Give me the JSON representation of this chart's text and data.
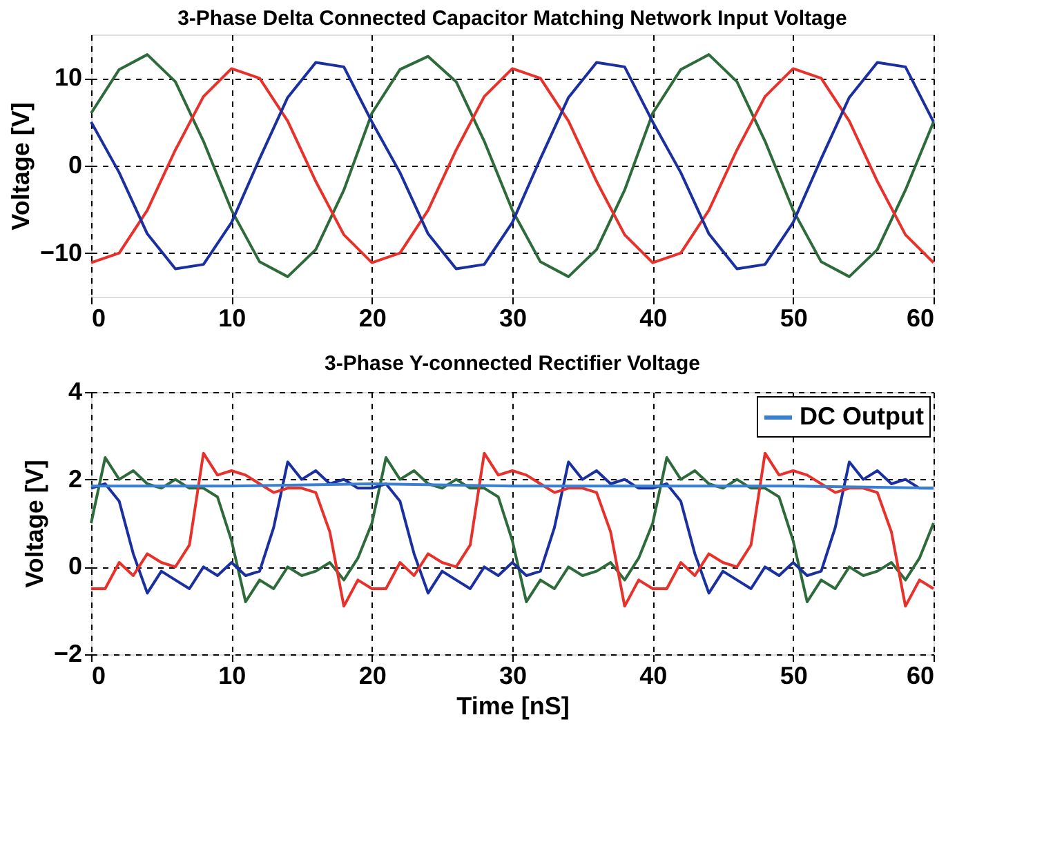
{
  "chart_data": [
    {
      "type": "line",
      "title": "3-Phase Delta Connected Capacitor Matching Network Input Voltage",
      "ylabel": "Voltage [V]",
      "x": [
        0,
        2,
        4,
        6,
        8,
        10,
        12,
        14,
        16,
        18,
        20,
        22,
        24,
        26,
        28,
        30,
        32,
        34,
        36,
        38,
        40,
        42,
        44,
        46,
        48,
        50,
        52,
        54,
        56,
        58,
        60
      ],
      "series": [
        {
          "color": "#2e6b3a",
          "values": [
            6,
            11,
            12.7,
            9.6,
            2.8,
            -5.1,
            -11,
            -12.7,
            -9.6,
            -2.8,
            6,
            11,
            12.5,
            9.6,
            2.8,
            -5.1,
            -11,
            -12.7,
            -9.6,
            -2.8,
            6,
            11,
            12.7,
            9.6,
            2.8,
            -5.1,
            -11,
            -12.7,
            -9.6,
            -2.8,
            5
          ]
        },
        {
          "color": "#e8312a",
          "values": [
            -11.1,
            -10,
            -5.1,
            1.8,
            7.9,
            11.1,
            10,
            5.1,
            -1.8,
            -7.9,
            -11.1,
            -10,
            -5.1,
            1.8,
            7.9,
            11.1,
            10,
            5.1,
            -1.8,
            -7.9,
            -11.1,
            -10,
            -5.1,
            1.8,
            7.9,
            11.1,
            10,
            5.1,
            -1.8,
            -7.9,
            -11.1
          ]
        },
        {
          "color": "#1a2fa0",
          "values": [
            5,
            -0.8,
            -7.8,
            -11.8,
            -11.3,
            -6.5,
            0.8,
            7.8,
            11.8,
            11.3,
            5,
            -0.8,
            -7.8,
            -11.8,
            -11.3,
            -6.5,
            0.8,
            7.8,
            11.8,
            11.3,
            5,
            -0.8,
            -7.8,
            -11.8,
            -11.3,
            -6.5,
            0.8,
            7.8,
            11.8,
            11.3,
            5
          ]
        }
      ],
      "xlim": [
        0,
        60
      ],
      "ylim": [
        -15,
        15
      ],
      "xticks": [
        0,
        10,
        20,
        30,
        40,
        50,
        60
      ],
      "yticks": [
        -10,
        0,
        10
      ],
      "grid": true
    },
    {
      "type": "line",
      "title": "3-Phase Y-connected Rectifier Voltage",
      "xlabel": "Time [nS]",
      "ylabel": "Voltage [V]",
      "x": [
        0,
        1,
        2,
        3,
        4,
        5,
        6,
        7,
        8,
        9,
        10,
        11,
        12,
        13,
        14,
        15,
        16,
        17,
        18,
        19,
        20,
        21,
        22,
        23,
        24,
        25,
        26,
        27,
        28,
        29,
        30,
        31,
        32,
        33,
        34,
        35,
        36,
        37,
        38,
        39,
        40,
        41,
        42,
        43,
        44,
        45,
        46,
        47,
        48,
        49,
        50,
        51,
        52,
        53,
        54,
        55,
        56,
        57,
        58,
        59,
        60
      ],
      "series": [
        {
          "color": "#2e6b3a",
          "values": [
            1.0,
            2.5,
            2.0,
            2.2,
            1.9,
            1.8,
            2.0,
            1.8,
            1.8,
            1.6,
            0.6,
            -0.8,
            -0.3,
            -0.5,
            0.0,
            -0.2,
            -0.1,
            0.1,
            -0.3,
            0.2,
            1.0,
            2.5,
            2.0,
            2.2,
            1.9,
            1.8,
            2.0,
            1.8,
            1.8,
            1.6,
            0.6,
            -0.8,
            -0.3,
            -0.5,
            0.0,
            -0.2,
            -0.1,
            0.1,
            -0.3,
            0.2,
            1.0,
            2.5,
            2.0,
            2.2,
            1.9,
            1.8,
            2.0,
            1.8,
            1.8,
            1.6,
            0.6,
            -0.8,
            -0.3,
            -0.5,
            0.0,
            -0.2,
            -0.1,
            0.1,
            -0.3,
            0.2,
            1.0
          ]
        },
        {
          "color": "#1a2fa0",
          "values": [
            1.8,
            1.9,
            1.5,
            0.3,
            -0.6,
            -0.1,
            -0.3,
            -0.5,
            0.0,
            -0.2,
            0.1,
            -0.2,
            -0.1,
            0.9,
            2.4,
            2.0,
            2.2,
            1.9,
            2.0,
            1.8,
            1.8,
            1.9,
            1.5,
            0.3,
            -0.6,
            -0.1,
            -0.3,
            -0.5,
            0.0,
            -0.2,
            0.1,
            -0.2,
            -0.1,
            0.9,
            2.4,
            2.0,
            2.2,
            1.9,
            2.0,
            1.8,
            1.8,
            1.9,
            1.5,
            0.3,
            -0.6,
            -0.1,
            -0.3,
            -0.5,
            0.0,
            -0.2,
            0.1,
            -0.2,
            -0.1,
            0.9,
            2.4,
            2.0,
            2.2,
            1.9,
            2.0,
            1.8,
            1.8
          ]
        },
        {
          "color": "#e8312a",
          "values": [
            -0.5,
            -0.5,
            0.1,
            -0.2,
            0.3,
            0.1,
            0.0,
            0.5,
            2.6,
            2.1,
            2.2,
            2.1,
            1.9,
            1.7,
            1.8,
            1.8,
            1.7,
            0.8,
            -0.9,
            -0.3,
            -0.5,
            -0.5,
            0.1,
            -0.2,
            0.3,
            0.1,
            0.0,
            0.5,
            2.6,
            2.1,
            2.2,
            2.1,
            1.9,
            1.7,
            1.8,
            1.8,
            1.7,
            0.8,
            -0.9,
            -0.3,
            -0.5,
            -0.5,
            0.1,
            -0.2,
            0.3,
            0.1,
            0.0,
            0.5,
            2.6,
            2.1,
            2.2,
            2.1,
            1.9,
            1.7,
            1.8,
            1.8,
            1.7,
            0.8,
            -0.9,
            -0.3,
            -0.5
          ]
        },
        {
          "name": "DC Output",
          "color": "#3a7fd0",
          "x": [
            0,
            10,
            20,
            30,
            40,
            50,
            60
          ],
          "values": [
            1.85,
            1.85,
            1.9,
            1.85,
            1.85,
            1.85,
            1.8
          ]
        }
      ],
      "xlim": [
        0,
        60
      ],
      "ylim": [
        -2,
        4
      ],
      "xticks": [
        0,
        10,
        20,
        30,
        40,
        50,
        60
      ],
      "yticks": [
        -2,
        0,
        2,
        4
      ],
      "grid": true,
      "legend": "top right"
    }
  ]
}
